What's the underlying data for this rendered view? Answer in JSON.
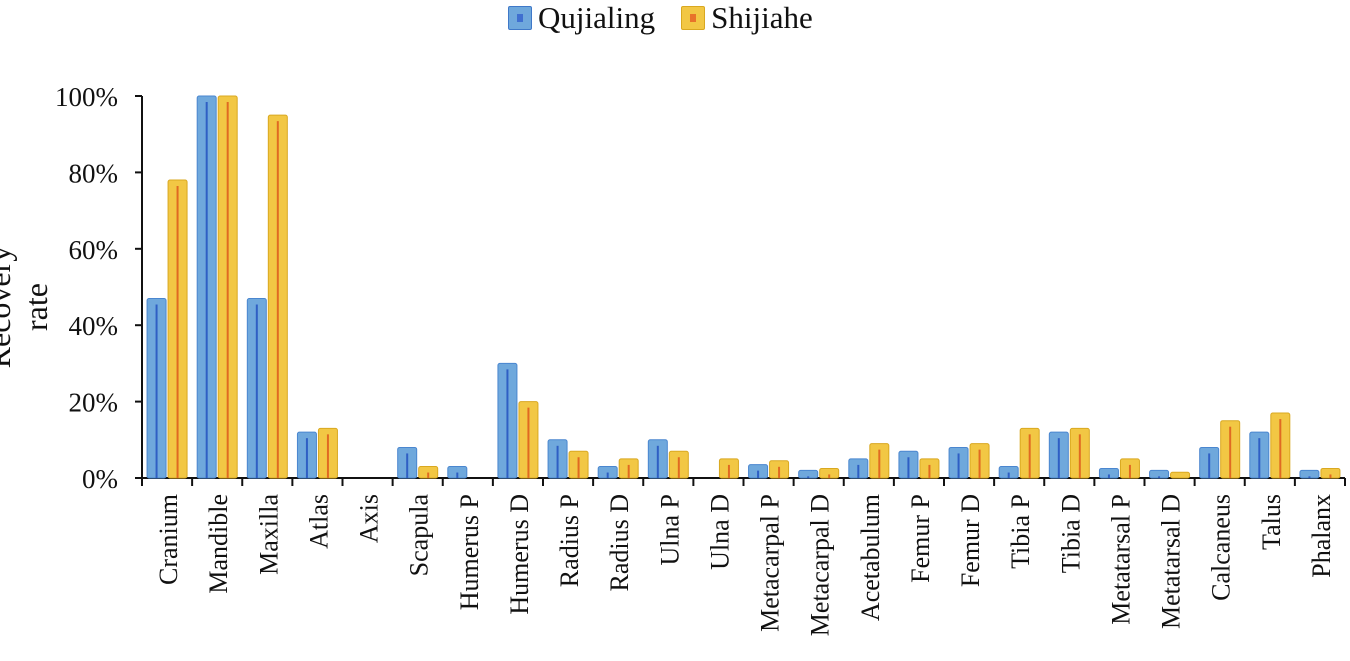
{
  "chart_data": {
    "type": "bar",
    "title": "",
    "xlabel": "",
    "ylabel": "Recovery rate",
    "ylim": [
      0,
      100
    ],
    "yticks": [
      "0%",
      "20%",
      "40%",
      "60%",
      "80%",
      "100%"
    ],
    "categories": [
      "Cranium",
      "Mandible",
      "Maxilla",
      "Atlas",
      "Axis",
      "Scapula",
      "Humerus P",
      "Humerus D",
      "Radius P",
      "Radius D",
      "Ulna P",
      "Ulna D",
      "Metacarpal P",
      "Metacarpal D",
      "Acetabulum",
      "Femur P",
      "Femur D",
      "Tibia P",
      "Tibia D",
      "Metatarsal P",
      "Metatarsal D",
      "Calcaneus",
      "Talus",
      "Phalanx"
    ],
    "series": [
      {
        "name": "Qujialing",
        "color": "#5B9BD5",
        "values": [
          47,
          100,
          47,
          12,
          0,
          8,
          3,
          30,
          10,
          3,
          10,
          0,
          3.5,
          2,
          5,
          7,
          8,
          3,
          12,
          2.5,
          2,
          8,
          12,
          2
        ]
      },
      {
        "name": "Shijiahe",
        "color": "#F0C030",
        "values": [
          78,
          100,
          95,
          13,
          0,
          3,
          0,
          20,
          7,
          5,
          7,
          5,
          4.5,
          2.5,
          9,
          5,
          9,
          13,
          13,
          5,
          1.5,
          15,
          17,
          2.5
        ]
      }
    ],
    "legend_position": "top-center",
    "grid": false
  }
}
